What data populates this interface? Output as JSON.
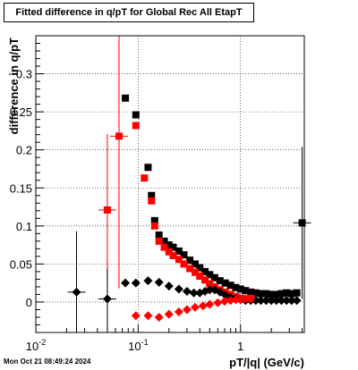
{
  "chart_data": {
    "type": "scatter",
    "title": "Fitted difference in q/pT for Global Rec All EtapT",
    "xlabel": "pT/|q| (GeV/c)",
    "ylabel": "difference in q/pT",
    "x_scale": "log",
    "xlim": [
      0.01,
      4.2
    ],
    "ylim": [
      -0.04,
      0.35
    ],
    "x_major_ticks": [
      0.01,
      0.1,
      1
    ],
    "x_major_tick_labels": [
      "10^-2",
      "10^-1",
      "1"
    ],
    "y_ticks": [
      0,
      0.05,
      0.1,
      0.15,
      0.2,
      0.25,
      0.3
    ],
    "y_tick_labels": [
      "0",
      "0.05",
      "0.1",
      "0.15",
      "0.2",
      "0.25",
      "0.3"
    ],
    "grid": true,
    "series": [
      {
        "color": "#000000",
        "marker": "square",
        "points": [
          {
            "x": 0.075,
            "y": 0.268
          },
          {
            "x": 0.095,
            "y": 0.246
          },
          {
            "x": 0.125,
            "y": 0.177
          },
          {
            "x": 0.135,
            "y": 0.14
          },
          {
            "x": 0.145,
            "y": 0.107
          },
          {
            "x": 0.16,
            "y": 0.088
          },
          {
            "x": 0.18,
            "y": 0.08
          },
          {
            "x": 0.2,
            "y": 0.075
          },
          {
            "x": 0.22,
            "y": 0.072
          },
          {
            "x": 0.25,
            "y": 0.067
          },
          {
            "x": 0.28,
            "y": 0.062
          },
          {
            "x": 0.32,
            "y": 0.055
          },
          {
            "x": 0.36,
            "y": 0.05
          },
          {
            "x": 0.4,
            "y": 0.045
          },
          {
            "x": 0.45,
            "y": 0.04
          },
          {
            "x": 0.5,
            "y": 0.036
          },
          {
            "x": 0.56,
            "y": 0.032
          },
          {
            "x": 0.63,
            "y": 0.028
          },
          {
            "x": 0.71,
            "y": 0.025
          },
          {
            "x": 0.8,
            "y": 0.022
          },
          {
            "x": 0.9,
            "y": 0.019
          },
          {
            "x": 1.0,
            "y": 0.017
          },
          {
            "x": 1.12,
            "y": 0.015
          },
          {
            "x": 1.26,
            "y": 0.013
          },
          {
            "x": 1.41,
            "y": 0.012
          },
          {
            "x": 1.58,
            "y": 0.011
          },
          {
            "x": 1.78,
            "y": 0.011
          },
          {
            "x": 2.0,
            "y": 0.01
          },
          {
            "x": 2.24,
            "y": 0.01
          },
          {
            "x": 2.51,
            "y": 0.011
          },
          {
            "x": 2.82,
            "y": 0.012
          },
          {
            "x": 3.16,
            "y": 0.011
          },
          {
            "x": 3.55,
            "y": 0.012
          },
          {
            "x": 4.0,
            "y": 0.104,
            "err": 0.1
          }
        ]
      },
      {
        "color": "#ff0000",
        "marker": "square",
        "points": [
          {
            "x": 0.05,
            "y": 0.121,
            "err": 0.1
          },
          {
            "x": 0.065,
            "y": 0.218,
            "err": 0.2
          },
          {
            "x": 0.095,
            "y": 0.232
          },
          {
            "x": 0.115,
            "y": 0.163
          },
          {
            "x": 0.135,
            "y": 0.133
          },
          {
            "x": 0.145,
            "y": 0.1
          },
          {
            "x": 0.16,
            "y": 0.08
          },
          {
            "x": 0.18,
            "y": 0.072
          },
          {
            "x": 0.2,
            "y": 0.066
          },
          {
            "x": 0.22,
            "y": 0.061
          },
          {
            "x": 0.25,
            "y": 0.056
          },
          {
            "x": 0.28,
            "y": 0.05
          },
          {
            "x": 0.32,
            "y": 0.044
          },
          {
            "x": 0.36,
            "y": 0.039
          },
          {
            "x": 0.4,
            "y": 0.034
          },
          {
            "x": 0.45,
            "y": 0.029
          },
          {
            "x": 0.5,
            "y": 0.024
          },
          {
            "x": 0.56,
            "y": 0.02
          },
          {
            "x": 0.63,
            "y": 0.016
          },
          {
            "x": 0.71,
            "y": 0.013
          },
          {
            "x": 0.8,
            "y": 0.01
          },
          {
            "x": 0.9,
            "y": 0.007
          },
          {
            "x": 1.0,
            "y": 0.005
          },
          {
            "x": 1.12,
            "y": 0.004
          },
          {
            "x": 1.26,
            "y": 0.005
          }
        ]
      },
      {
        "color": "#000000",
        "marker": "diamond",
        "points": [
          {
            "x": 0.025,
            "y": 0.013,
            "err": 0.08
          },
          {
            "x": 0.05,
            "y": 0.004,
            "err": 0.04
          },
          {
            "x": 0.075,
            "y": 0.025
          },
          {
            "x": 0.095,
            "y": 0.025
          },
          {
            "x": 0.125,
            "y": 0.028
          },
          {
            "x": 0.16,
            "y": 0.026
          },
          {
            "x": 0.2,
            "y": 0.021
          },
          {
            "x": 0.25,
            "y": 0.017
          },
          {
            "x": 0.3,
            "y": 0.014
          },
          {
            "x": 0.35,
            "y": 0.012
          },
          {
            "x": 0.4,
            "y": 0.012
          },
          {
            "x": 0.45,
            "y": 0.014
          },
          {
            "x": 0.5,
            "y": 0.016
          },
          {
            "x": 0.56,
            "y": 0.016
          },
          {
            "x": 0.63,
            "y": 0.013
          },
          {
            "x": 0.71,
            "y": 0.009
          },
          {
            "x": 0.8,
            "y": 0.006
          },
          {
            "x": 0.9,
            "y": 0.004
          },
          {
            "x": 1.0,
            "y": 0.003
          },
          {
            "x": 1.12,
            "y": 0.002
          },
          {
            "x": 1.26,
            "y": 0.002
          },
          {
            "x": 1.41,
            "y": 0.002
          },
          {
            "x": 1.58,
            "y": 0.002
          },
          {
            "x": 1.78,
            "y": 0.002
          },
          {
            "x": 2.0,
            "y": 0.002
          },
          {
            "x": 2.24,
            "y": 0.002
          },
          {
            "x": 2.51,
            "y": 0.002
          },
          {
            "x": 2.82,
            "y": 0.002
          },
          {
            "x": 3.16,
            "y": 0.002
          },
          {
            "x": 3.55,
            "y": 0.002
          }
        ]
      },
      {
        "color": "#ff0000",
        "marker": "diamond",
        "points": [
          {
            "x": 0.095,
            "y": -0.018
          },
          {
            "x": 0.125,
            "y": -0.018
          },
          {
            "x": 0.16,
            "y": -0.02
          },
          {
            "x": 0.2,
            "y": -0.016
          },
          {
            "x": 0.25,
            "y": -0.013
          },
          {
            "x": 0.3,
            "y": -0.01
          },
          {
            "x": 0.36,
            "y": -0.007
          },
          {
            "x": 0.43,
            "y": -0.005
          },
          {
            "x": 0.5,
            "y": -0.003
          },
          {
            "x": 0.6,
            "y": -0.001
          },
          {
            "x": 0.7,
            "y": 0.001
          },
          {
            "x": 0.8,
            "y": 0.002
          },
          {
            "x": 0.9,
            "y": 0.003
          },
          {
            "x": 1.0,
            "y": 0.003
          },
          {
            "x": 1.12,
            "y": 0.004
          },
          {
            "x": 1.26,
            "y": 0.004
          }
        ]
      }
    ]
  },
  "footer": {
    "timestamp": "Mon Oct 21 08:49:24 2024"
  }
}
